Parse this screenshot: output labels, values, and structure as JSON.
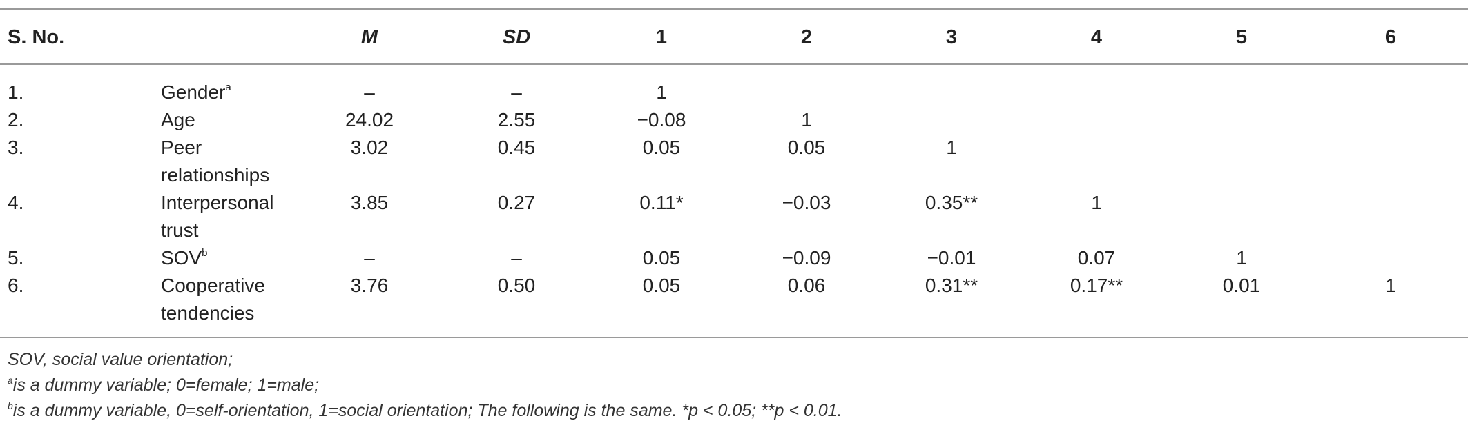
{
  "headers": [
    "S. No.",
    "",
    "M",
    "SD",
    "1",
    "2",
    "3",
    "4",
    "5",
    "6"
  ],
  "rows": [
    {
      "no": "1.",
      "label": [
        "Gender"
      ],
      "sup": "a",
      "m": "–",
      "sd": "–",
      "c1": "1",
      "c2": "",
      "c3": "",
      "c4": "",
      "c5": "",
      "c6": ""
    },
    {
      "no": "2.",
      "label": [
        "Age"
      ],
      "sup": "",
      "m": "24.02",
      "sd": "2.55",
      "c1": "−0.08",
      "c2": "1",
      "c3": "",
      "c4": "",
      "c5": "",
      "c6": ""
    },
    {
      "no": "3.",
      "label": [
        "Peer",
        "relationships"
      ],
      "sup": "",
      "m": "3.02",
      "sd": "0.45",
      "c1": "0.05",
      "c2": "0.05",
      "c3": "1",
      "c4": "",
      "c5": "",
      "c6": ""
    },
    {
      "no": "4.",
      "label": [
        "Interpersonal",
        "trust"
      ],
      "sup": "",
      "m": "3.85",
      "sd": "0.27",
      "c1": "0.11*",
      "c2": "−0.03",
      "c3": "0.35**",
      "c4": "1",
      "c5": "",
      "c6": ""
    },
    {
      "no": "5.",
      "label": [
        "SOV"
      ],
      "sup": "b",
      "m": "–",
      "sd": "–",
      "c1": "0.05",
      "c2": "−0.09",
      "c3": "−0.01",
      "c4": "0.07",
      "c5": "1",
      "c6": ""
    },
    {
      "no": "6.",
      "label": [
        "Cooperative",
        "tendencies"
      ],
      "sup": "",
      "m": "3.76",
      "sd": "0.50",
      "c1": "0.05",
      "c2": "0.06",
      "c3": "0.31**",
      "c4": "0.17**",
      "c5": "0.01",
      "c6": "1"
    }
  ],
  "footnotes": {
    "line1": "SOV, social value orientation;",
    "line2_sup": "a",
    "line2": "is a dummy variable; 0=female; 1=male;",
    "line3_sup": "b",
    "line3": "is a dummy variable, 0=self-orientation, 1=social orientation; The following is the same. *p < 0.05; **p < 0.01."
  }
}
